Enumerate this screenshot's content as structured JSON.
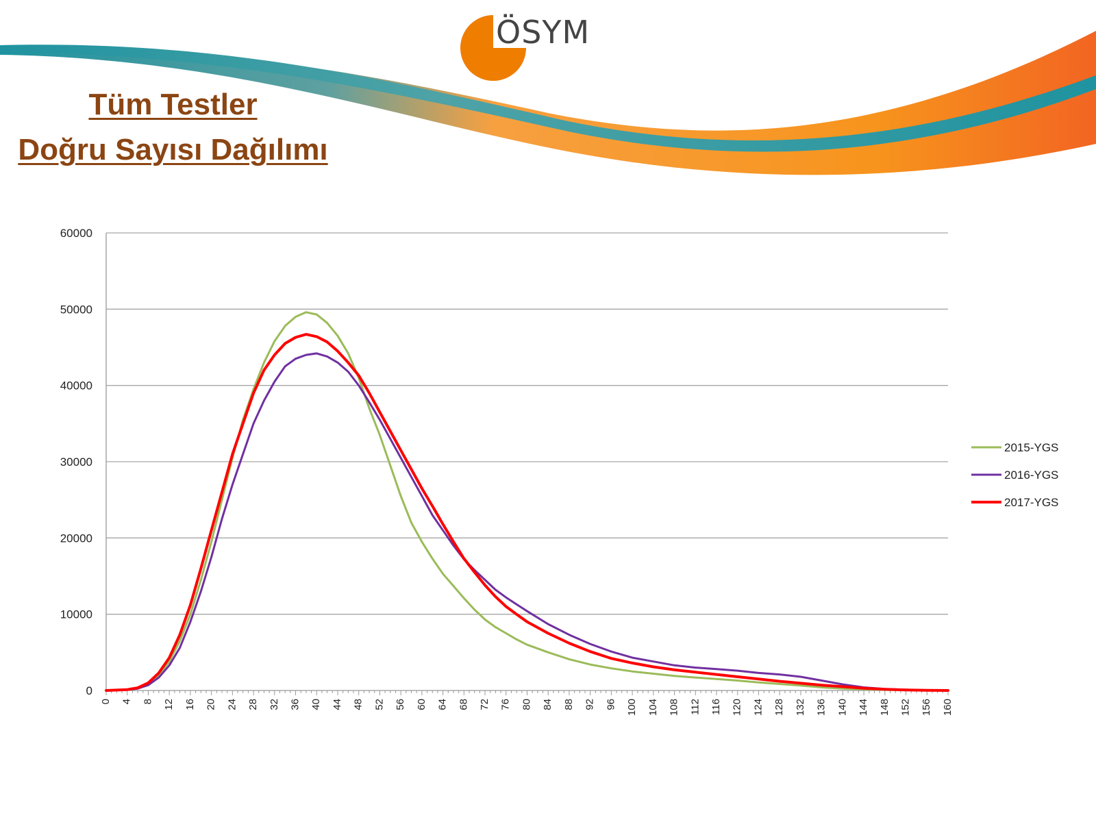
{
  "header": {
    "logo_text": "ÖSYM",
    "title_line1": "Tüm Testler",
    "title_line2": "Doğru Sayısı Dağılımı"
  },
  "colors": {
    "title": "#8b4513",
    "logo_orange": "#ef7d00",
    "wave_teal": "#1f93a0",
    "wave_orange": "#f7941d"
  },
  "chart_data": {
    "type": "line",
    "title": "",
    "xlabel": "",
    "ylabel": "",
    "xlim": [
      0,
      160
    ],
    "ylim": [
      0,
      60000
    ],
    "y_ticks": [
      0,
      10000,
      20000,
      30000,
      40000,
      50000,
      60000
    ],
    "x_tick_step": 4,
    "grid": "horizontal",
    "legend_position": "right",
    "series": [
      {
        "name": "2015-YGS",
        "color": "#9bbb59",
        "points": [
          [
            0,
            0
          ],
          [
            4,
            100
          ],
          [
            6,
            300
          ],
          [
            8,
            900
          ],
          [
            10,
            2000
          ],
          [
            12,
            3800
          ],
          [
            14,
            6500
          ],
          [
            16,
            10000
          ],
          [
            18,
            14500
          ],
          [
            20,
            19500
          ],
          [
            22,
            25000
          ],
          [
            24,
            30500
          ],
          [
            26,
            35500
          ],
          [
            28,
            39500
          ],
          [
            30,
            43000
          ],
          [
            32,
            45800
          ],
          [
            34,
            47800
          ],
          [
            36,
            49000
          ],
          [
            38,
            49600
          ],
          [
            40,
            49300
          ],
          [
            42,
            48200
          ],
          [
            44,
            46500
          ],
          [
            46,
            44200
          ],
          [
            48,
            41000
          ],
          [
            50,
            37000
          ],
          [
            52,
            33500
          ],
          [
            54,
            29500
          ],
          [
            56,
            25500
          ],
          [
            58,
            22000
          ],
          [
            60,
            19500
          ],
          [
            62,
            17300
          ],
          [
            64,
            15300
          ],
          [
            66,
            13700
          ],
          [
            68,
            12100
          ],
          [
            70,
            10600
          ],
          [
            72,
            9300
          ],
          [
            74,
            8300
          ],
          [
            76,
            7500
          ],
          [
            78,
            6700
          ],
          [
            80,
            6000
          ],
          [
            84,
            5000
          ],
          [
            88,
            4100
          ],
          [
            92,
            3400
          ],
          [
            96,
            2900
          ],
          [
            100,
            2500
          ],
          [
            104,
            2200
          ],
          [
            108,
            1900
          ],
          [
            112,
            1700
          ],
          [
            116,
            1500
          ],
          [
            120,
            1300
          ],
          [
            124,
            1050
          ],
          [
            128,
            850
          ],
          [
            132,
            650
          ],
          [
            136,
            400
          ],
          [
            140,
            250
          ],
          [
            144,
            150
          ],
          [
            148,
            80
          ],
          [
            152,
            40
          ],
          [
            156,
            20
          ],
          [
            160,
            0
          ]
        ]
      },
      {
        "name": "2016-YGS",
        "color": "#7030a0",
        "points": [
          [
            0,
            0
          ],
          [
            4,
            80
          ],
          [
            6,
            250
          ],
          [
            8,
            700
          ],
          [
            10,
            1700
          ],
          [
            12,
            3300
          ],
          [
            14,
            5600
          ],
          [
            16,
            9000
          ],
          [
            18,
            13000
          ],
          [
            20,
            17500
          ],
          [
            22,
            22500
          ],
          [
            24,
            27000
          ],
          [
            26,
            31000
          ],
          [
            28,
            35000
          ],
          [
            30,
            38000
          ],
          [
            32,
            40500
          ],
          [
            34,
            42500
          ],
          [
            36,
            43500
          ],
          [
            38,
            44000
          ],
          [
            40,
            44200
          ],
          [
            42,
            43800
          ],
          [
            44,
            43000
          ],
          [
            46,
            41800
          ],
          [
            48,
            40000
          ],
          [
            50,
            37800
          ],
          [
            52,
            35500
          ],
          [
            54,
            33000
          ],
          [
            56,
            30500
          ],
          [
            58,
            28000
          ],
          [
            60,
            25500
          ],
          [
            62,
            23000
          ],
          [
            64,
            21000
          ],
          [
            66,
            19000
          ],
          [
            68,
            17200
          ],
          [
            70,
            15800
          ],
          [
            72,
            14500
          ],
          [
            74,
            13200
          ],
          [
            76,
            12200
          ],
          [
            78,
            11300
          ],
          [
            80,
            10400
          ],
          [
            84,
            8700
          ],
          [
            88,
            7300
          ],
          [
            92,
            6100
          ],
          [
            96,
            5100
          ],
          [
            100,
            4300
          ],
          [
            104,
            3800
          ],
          [
            108,
            3300
          ],
          [
            112,
            3000
          ],
          [
            116,
            2800
          ],
          [
            120,
            2600
          ],
          [
            124,
            2300
          ],
          [
            128,
            2100
          ],
          [
            132,
            1800
          ],
          [
            136,
            1300
          ],
          [
            140,
            800
          ],
          [
            144,
            400
          ],
          [
            148,
            200
          ],
          [
            152,
            100
          ],
          [
            156,
            40
          ],
          [
            160,
            0
          ]
        ]
      },
      {
        "name": "2017-YGS",
        "color": "#ff0000",
        "points": [
          [
            0,
            0
          ],
          [
            4,
            120
          ],
          [
            6,
            350
          ],
          [
            8,
            1000
          ],
          [
            10,
            2300
          ],
          [
            12,
            4300
          ],
          [
            14,
            7300
          ],
          [
            16,
            11200
          ],
          [
            18,
            16000
          ],
          [
            20,
            21000
          ],
          [
            22,
            26000
          ],
          [
            24,
            31000
          ],
          [
            26,
            35000
          ],
          [
            28,
            39000
          ],
          [
            30,
            42000
          ],
          [
            32,
            44000
          ],
          [
            34,
            45500
          ],
          [
            36,
            46300
          ],
          [
            38,
            46700
          ],
          [
            40,
            46400
          ],
          [
            42,
            45700
          ],
          [
            44,
            44500
          ],
          [
            46,
            43000
          ],
          [
            48,
            41300
          ],
          [
            50,
            39000
          ],
          [
            52,
            36500
          ],
          [
            54,
            34000
          ],
          [
            56,
            31500
          ],
          [
            58,
            29000
          ],
          [
            60,
            26500
          ],
          [
            62,
            24200
          ],
          [
            64,
            21800
          ],
          [
            66,
            19500
          ],
          [
            68,
            17300
          ],
          [
            70,
            15500
          ],
          [
            72,
            13800
          ],
          [
            74,
            12300
          ],
          [
            76,
            11000
          ],
          [
            78,
            10000
          ],
          [
            80,
            9000
          ],
          [
            84,
            7500
          ],
          [
            88,
            6200
          ],
          [
            92,
            5100
          ],
          [
            96,
            4200
          ],
          [
            100,
            3600
          ],
          [
            104,
            3100
          ],
          [
            108,
            2700
          ],
          [
            112,
            2400
          ],
          [
            116,
            2100
          ],
          [
            120,
            1800
          ],
          [
            124,
            1500
          ],
          [
            128,
            1200
          ],
          [
            132,
            950
          ],
          [
            136,
            700
          ],
          [
            140,
            500
          ],
          [
            144,
            300
          ],
          [
            148,
            150
          ],
          [
            152,
            70
          ],
          [
            156,
            30
          ],
          [
            160,
            0
          ]
        ]
      }
    ]
  }
}
